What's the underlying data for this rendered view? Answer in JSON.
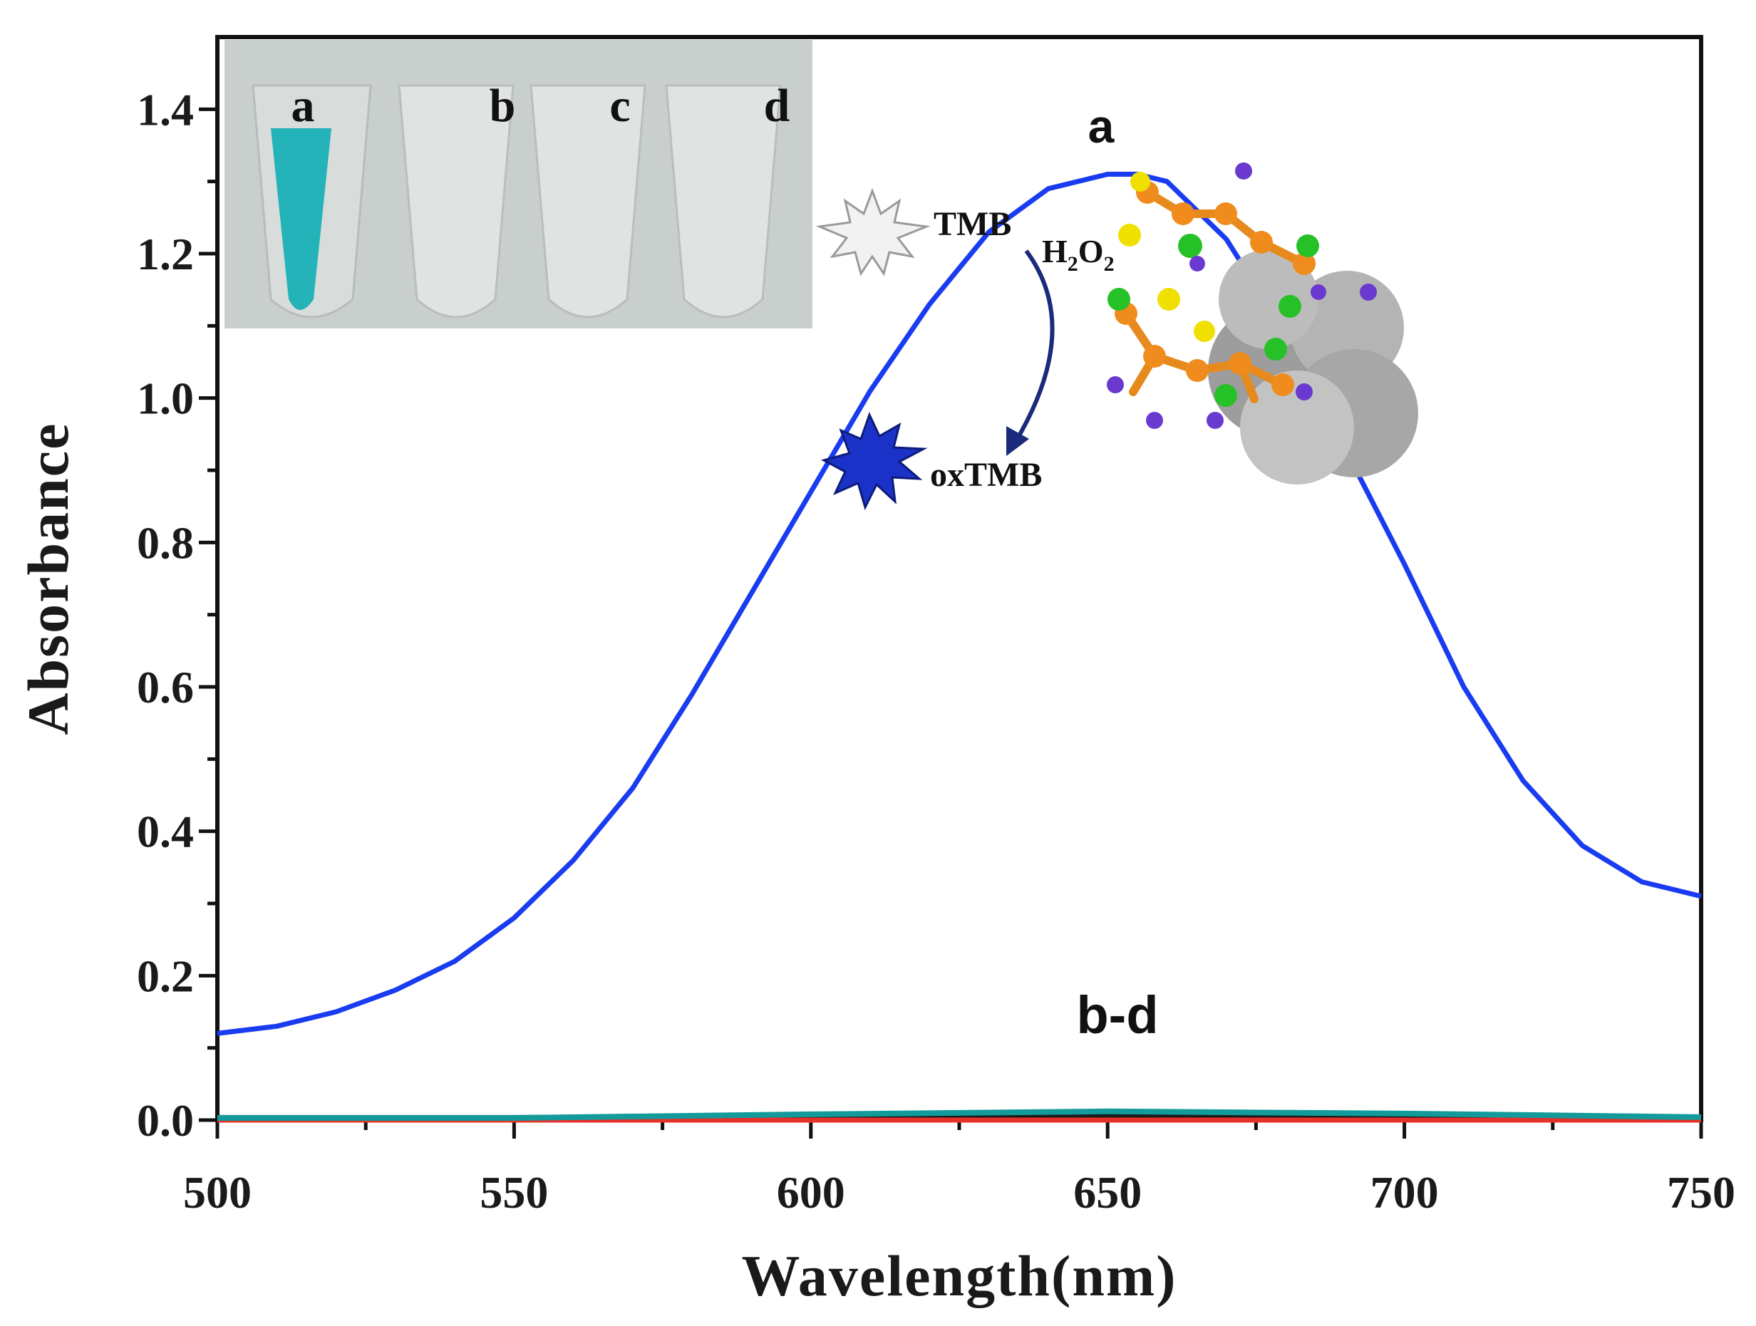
{
  "chart_data": {
    "type": "line",
    "xlabel": "Wavelength(nm)",
    "ylabel": "Absorbance",
    "xlim": [
      500,
      750
    ],
    "ylim": [
      0.0,
      1.5
    ],
    "xticks": [
      500,
      550,
      600,
      650,
      700,
      750
    ],
    "yticks": [
      0.0,
      0.2,
      0.4,
      0.6,
      0.8,
      1.0,
      1.2,
      1.4
    ],
    "xtick_labels": [
      "500",
      "550",
      "600",
      "650",
      "700",
      "750"
    ],
    "ytick_labels": [
      "0.0",
      "0.2",
      "0.4",
      "0.6",
      "0.8",
      "1.0",
      "1.2",
      "1.4"
    ],
    "series": [
      {
        "name": "a",
        "color": "#1a3cf0",
        "x": [
          500,
          510,
          520,
          530,
          540,
          550,
          560,
          570,
          580,
          590,
          600,
          610,
          620,
          630,
          640,
          650,
          655,
          660,
          670,
          680,
          690,
          700,
          710,
          720,
          730,
          740,
          750
        ],
        "values": [
          0.12,
          0.13,
          0.15,
          0.18,
          0.22,
          0.28,
          0.36,
          0.46,
          0.59,
          0.73,
          0.87,
          1.01,
          1.13,
          1.23,
          1.29,
          1.31,
          1.31,
          1.3,
          1.22,
          1.09,
          0.93,
          0.77,
          0.6,
          0.47,
          0.38,
          0.33,
          0.31
        ]
      },
      {
        "name": "b",
        "color": "#1a1a1a",
        "x": [
          500,
          550,
          600,
          650,
          700,
          750
        ],
        "values": [
          0.004,
          0.004,
          0.005,
          0.006,
          0.004,
          0.003
        ]
      },
      {
        "name": "c",
        "color": "#e8302a",
        "x": [
          500,
          550,
          600,
          650,
          700,
          750
        ],
        "values": [
          0.0,
          0.0,
          0.0,
          0.0,
          0.0,
          0.0
        ]
      },
      {
        "name": "d",
        "color": "#139a9a",
        "x": [
          500,
          550,
          600,
          650,
          700,
          750
        ],
        "values": [
          0.003,
          0.003,
          0.008,
          0.012,
          0.009,
          0.004
        ]
      }
    ],
    "annotations": {
      "curve_a_label": "a",
      "curve_bd_label": "b-d",
      "tmb_label": "TMB",
      "h2o2_label": "H",
      "h2o2_sub_2a": "2",
      "h2o2_o": "O",
      "h2o2_sub_2b": "2",
      "oxtmb_label": "oxTMB"
    },
    "inset_photo": {
      "tube_labels": [
        "a",
        "b",
        "c",
        "d"
      ],
      "tube_a_color": "#23b3b8"
    }
  }
}
